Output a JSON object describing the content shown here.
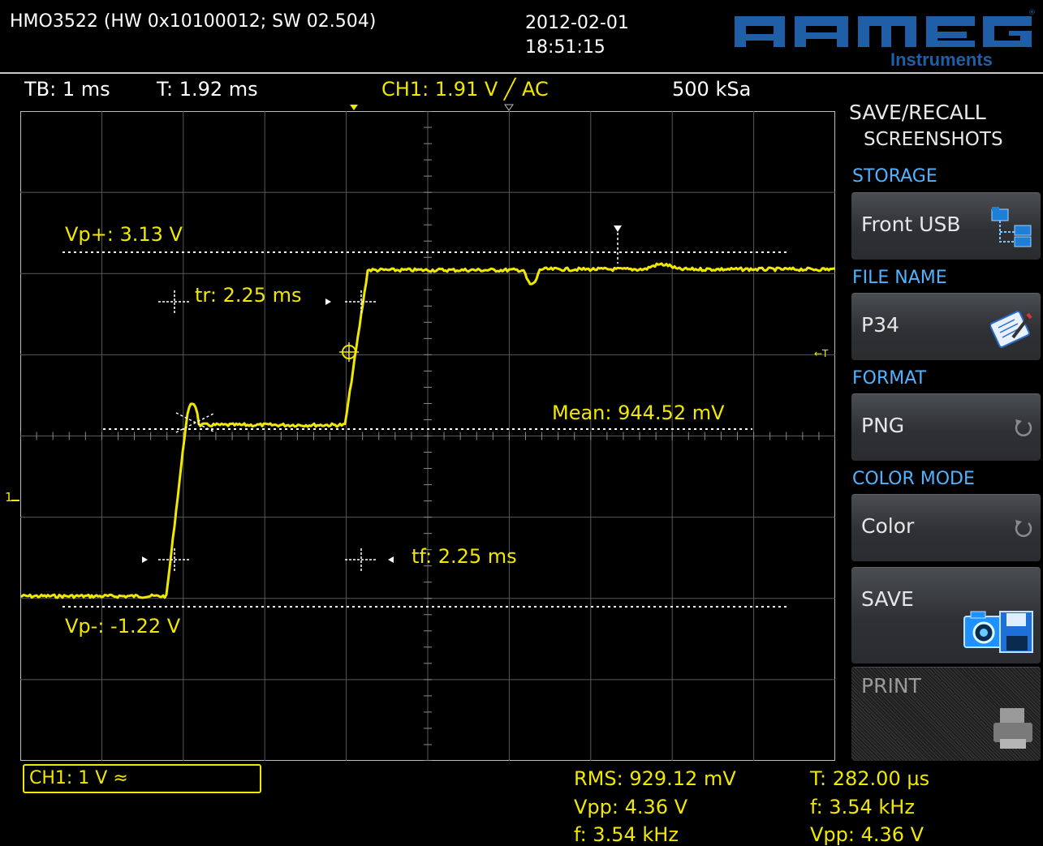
{
  "header": {
    "model": "HMO3522 (HW 0x10100012; SW 02.504)",
    "date": "2012-02-01",
    "time": "18:51:15",
    "brand": "HAMEG",
    "brand_sub": "Instruments"
  },
  "status": {
    "timebase": "TB: 1 ms",
    "trigger_time": "T: 1.92 ms",
    "trigger": "CH1: 1.91 V ╱ AC",
    "sample_rate": "500 kSa"
  },
  "scope": {
    "vp_plus": "Vp+: 3.13 V",
    "vp_minus": "Vp-: -1.22 V",
    "rise": "tr: 2.25 ms",
    "fall": "tf: 2.25 ms",
    "mean": "Mean: 944.52 mV",
    "trigger_marker": "←T",
    "ch_marker": "1",
    "trace_color": "#f0e800",
    "grid_color": "#5a5a5a"
  },
  "menu": {
    "title": "SAVE/RECALL",
    "subtitle": "SCREENSHOTS",
    "storage_label": "STORAGE",
    "storage_value": "Front USB",
    "filename_label": "FILE NAME",
    "filename_value": "P34",
    "format_label": "FORMAT",
    "format_value": "PNG",
    "colormode_label": "COLOR MODE",
    "colormode_value": "Color",
    "save_label": "SAVE",
    "print_label": "PRINT",
    "accent_color": "#4fb3ff"
  },
  "footer": {
    "channel": "CH1: 1 V ≈",
    "rms": "RMS: 929.12 mV",
    "vpp": "Vpp: 4.36 V",
    "freq": "f: 3.54 kHz",
    "cursor_t": "T: 282.00 µs",
    "cursor_f": "f: 3.54 kHz",
    "cursor_vpp": "Vpp: 4.36 V"
  }
}
